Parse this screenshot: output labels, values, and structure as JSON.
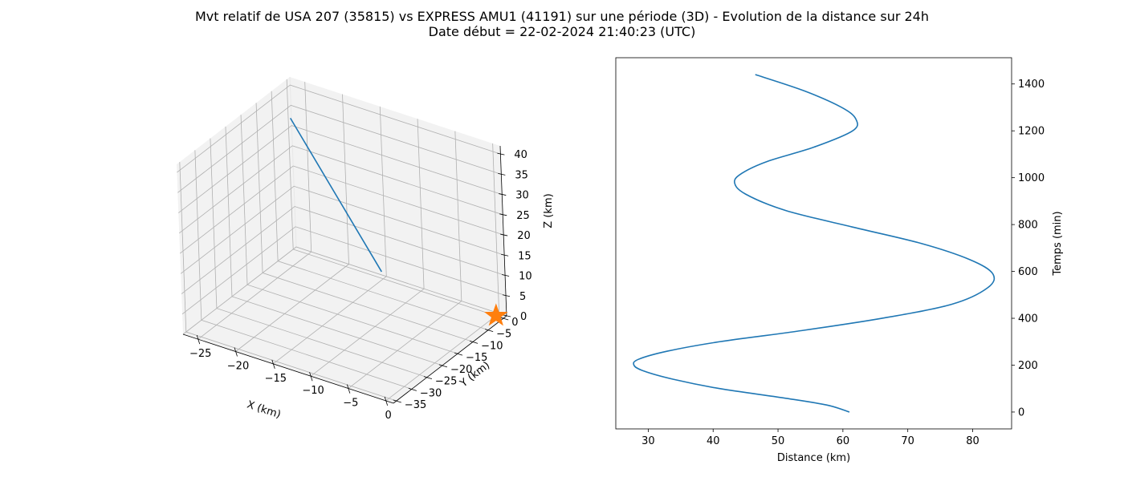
{
  "title": {
    "line1": "Mvt relatif de USA 207 (35815) vs EXPRESS AMU1 (41191) sur une période (3D) - Evolution de la distance sur 24h",
    "line2": "Date début = 22-02-2024 21:40:23 (UTC)"
  },
  "colors": {
    "line": "#1f77b4",
    "star": "#ff7f0e",
    "pane": "#f2f2f2",
    "grid": "#b0b0b0"
  },
  "chart_data": [
    {
      "type": "line3d",
      "xlabel": "X (km)",
      "ylabel": "Y (km)",
      "zlabel": "Z (km)",
      "xlim": [
        -27,
        1
      ],
      "ylim": [
        -36,
        1
      ],
      "zlim": [
        0,
        42
      ],
      "xticks": [
        -25,
        -20,
        -15,
        -10,
        -5,
        0
      ],
      "yticks": [
        0,
        -5,
        -10,
        -15,
        -20,
        -25,
        -30,
        -35
      ],
      "zticks": [
        0,
        5,
        10,
        15,
        20,
        25,
        30,
        35,
        40
      ],
      "series": [
        {
          "values": [
            {
              "x": -26.5,
              "y": -0.5,
              "z": 33
            },
            {
              "x": -13.5,
              "y": -4.0,
              "z": 5
            }
          ]
        }
      ],
      "marker": {
        "shape": "star",
        "x": 0,
        "y": 0,
        "z": 0
      },
      "grid": true
    },
    {
      "type": "line",
      "xlabel": "Distance (km)",
      "ylabel": "Temps (min)",
      "yaxis_position": "right",
      "xlim": [
        25,
        86
      ],
      "ylim": [
        -72,
        1512
      ],
      "xticks": [
        30,
        40,
        50,
        60,
        70,
        80
      ],
      "yticks": [
        0,
        200,
        400,
        600,
        800,
        1000,
        1200,
        1400
      ],
      "series": [
        {
          "x": [
            61.0,
            57.5,
            50.9,
            41.0,
            33.8,
            29.3,
            27.8,
            28.5,
            33.0,
            41.0,
            53.0,
            66.0,
            76.8,
            82.3,
            83.1,
            79.6,
            72.0,
            61.4,
            51.2,
            45.0,
            43.3,
            44.5,
            48.4,
            55.5,
            61.5,
            62.0,
            59.8,
            54.1,
            46.5
          ],
          "y": [
            0,
            30,
            60,
            100,
            140,
            175,
            200,
            225,
            260,
            300,
            345,
            400,
            460,
            530,
            590,
            650,
            720,
            790,
            860,
            930,
            980,
            1020,
            1070,
            1130,
            1200,
            1250,
            1300,
            1370,
            1440
          ]
        }
      ],
      "grid": false
    }
  ]
}
